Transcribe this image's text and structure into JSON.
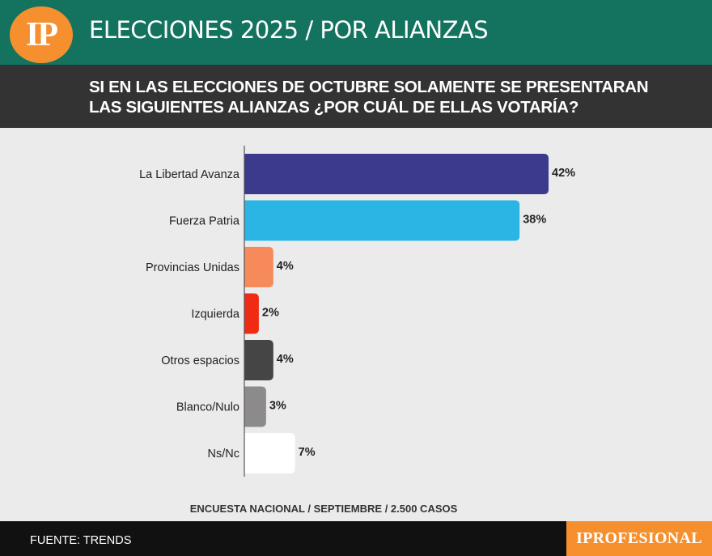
{
  "header": {
    "logo_text": "IP",
    "title": "ELECCIONES 2025 / POR ALIANZAS"
  },
  "question": {
    "line1": "SI EN LAS ELECCIONES DE OCTUBRE SOLAMENTE SE PRESENTARAN",
    "line2": "LAS SIGUIENTES ALIANZAS ¿POR CUÁL DE ELLAS VOTARÍA?"
  },
  "chart_data": {
    "type": "bar",
    "orientation": "horizontal",
    "categories": [
      "La Libertad Avanza",
      "Fuerza Patria",
      "Provincias Unidas",
      "Izquierda",
      "Otros espacios",
      "Blanco/Nulo",
      "Ns/Nc"
    ],
    "values": [
      42,
      38,
      4,
      2,
      4,
      3,
      7
    ],
    "value_labels": [
      "42%",
      "38%",
      "4%",
      "2%",
      "4%",
      "3%",
      "7%"
    ],
    "colors": [
      "#3b3a8c",
      "#2ab5e4",
      "#f68a5a",
      "#ef2b14",
      "#454545",
      "#8c8a8a",
      "#ffffff"
    ],
    "unit": "%",
    "xlim": [
      0,
      42
    ]
  },
  "footnote": "ENCUESTA NACIONAL / SEPTIEMBRE / 2.500 CASOS",
  "footer": {
    "source": "FUENTE: TRENDS",
    "brand": "IPROFESIONAL"
  }
}
